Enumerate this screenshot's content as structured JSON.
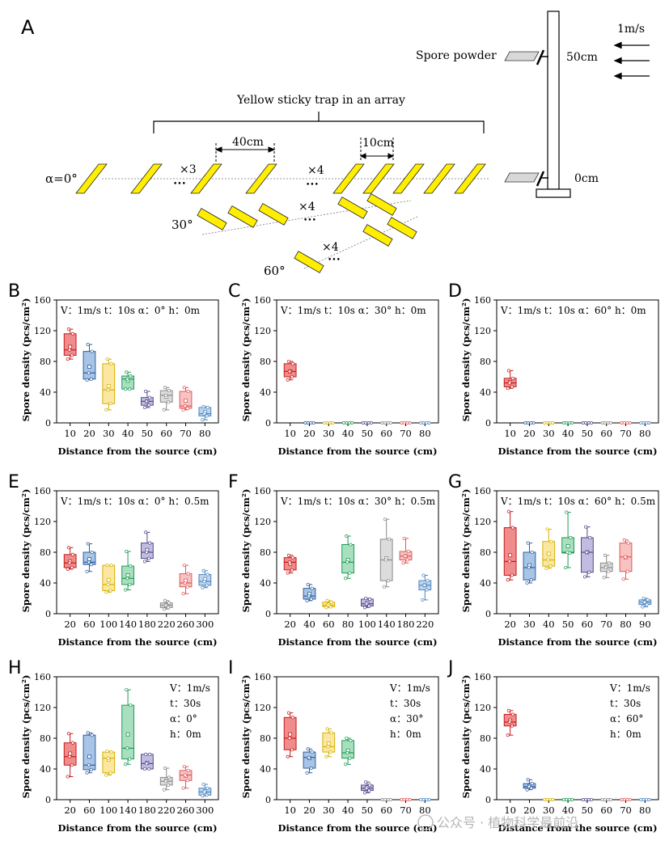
{
  "panel_a": {
    "letter": "A",
    "speed_label": "1m/s",
    "height_top_label": "50cm",
    "height_bottom_label": "0cm",
    "spore_label": "Spore powder",
    "array_label": "Yellow sticky trap in an array",
    "spacing_40": "40cm",
    "spacing_10": "10cm",
    "mult_3": "×3",
    "mult_4": "×4",
    "dots": "•••",
    "angle_0": "α=0°",
    "angle_30": "30°",
    "angle_60": "60°",
    "colors": {
      "trap": "#ffee00",
      "outline": "#000000"
    }
  },
  "watermark": "公众号 · 植物科学最前沿",
  "chart_data": [
    {
      "id": "B",
      "type": "box",
      "params": [
        "V：1m/s",
        "t：10s",
        "α：0°",
        "h：0m"
      ],
      "params_layout": "row",
      "ylabel": "Spore density (pcs/cm²)",
      "xlabel": "Distance from the source (cm)",
      "ylim": [
        0,
        160
      ],
      "yticks": [
        0,
        40,
        80,
        120,
        160
      ],
      "categories": [
        "10",
        "20",
        "30",
        "40",
        "50",
        "60",
        "70",
        "80"
      ],
      "boxes": [
        {
          "min": 83,
          "q1": 88,
          "median": 95,
          "mean": 99,
          "q3": 116,
          "max": 122
        },
        {
          "min": 56,
          "q1": 57,
          "median": 65,
          "mean": 73,
          "q3": 93,
          "max": 102
        },
        {
          "min": 17,
          "q1": 25,
          "median": 43,
          "mean": 48,
          "q3": 77,
          "max": 83
        },
        {
          "min": 44,
          "q1": 44,
          "median": 57,
          "mean": 55,
          "q3": 61,
          "max": 66
        },
        {
          "min": 20,
          "q1": 23,
          "median": 28,
          "mean": 28,
          "q3": 33,
          "max": 41
        },
        {
          "min": 17,
          "q1": 27,
          "median": 36,
          "mean": 34,
          "q3": 42,
          "max": 46
        },
        {
          "min": 17,
          "q1": 19,
          "median": 22,
          "mean": 29,
          "q3": 41,
          "max": 46
        },
        {
          "min": 4,
          "q1": 9,
          "median": 12,
          "mean": 14,
          "q3": 20,
          "max": 21
        }
      ]
    },
    {
      "id": "C",
      "type": "box",
      "params": [
        "V：1m/s",
        "t：10s",
        "α：30°",
        "h：0m"
      ],
      "params_layout": "row",
      "ylabel": "Spore density (pcs/cm²)",
      "xlabel": "Distance from the source (cm)",
      "ylim": [
        0,
        160
      ],
      "yticks": [
        0,
        40,
        80,
        120,
        160
      ],
      "categories": [
        "10",
        "20",
        "30",
        "40",
        "50",
        "60",
        "70",
        "80"
      ],
      "boxes": [
        {
          "min": 56,
          "q1": 60,
          "median": 67,
          "mean": 67,
          "q3": 77,
          "max": 80
        },
        {
          "min": 0,
          "q1": 0,
          "median": 0,
          "mean": 0,
          "q3": 0,
          "max": 0
        },
        {
          "min": 0,
          "q1": 0,
          "median": 0,
          "mean": 0,
          "q3": 0,
          "max": 0
        },
        {
          "min": 0,
          "q1": 0,
          "median": 0,
          "mean": 0,
          "q3": 0,
          "max": 0
        },
        {
          "min": 0,
          "q1": 0,
          "median": 0,
          "mean": 0,
          "q3": 0,
          "max": 0
        },
        {
          "min": 0,
          "q1": 0,
          "median": 0,
          "mean": 0,
          "q3": 0,
          "max": 0
        },
        {
          "min": 0,
          "q1": 0,
          "median": 0,
          "mean": 0,
          "q3": 0,
          "max": 0
        },
        {
          "min": 0,
          "q1": 0,
          "median": 0,
          "mean": 0,
          "q3": 0,
          "max": 0
        }
      ]
    },
    {
      "id": "D",
      "type": "box",
      "params": [
        "V：1m/s",
        "t：10s",
        "α：60°",
        "h：0m"
      ],
      "params_layout": "row",
      "ylabel": "Spore density (pcs/cm²)",
      "xlabel": "Distance from the source (cm)",
      "ylim": [
        0,
        160
      ],
      "yticks": [
        0,
        40,
        80,
        120,
        160
      ],
      "categories": [
        "10",
        "20",
        "30",
        "40",
        "50",
        "60",
        "70",
        "80"
      ],
      "boxes": [
        {
          "min": 45,
          "q1": 47,
          "median": 52,
          "mean": 53,
          "q3": 58,
          "max": 68
        },
        {
          "min": 0,
          "q1": 0,
          "median": 0,
          "mean": 0,
          "q3": 0,
          "max": 0
        },
        {
          "min": 0,
          "q1": 0,
          "median": 0,
          "mean": 0,
          "q3": 0,
          "max": 0
        },
        {
          "min": 0,
          "q1": 0,
          "median": 0,
          "mean": 0,
          "q3": 0,
          "max": 0
        },
        {
          "min": 0,
          "q1": 0,
          "median": 0,
          "mean": 0,
          "q3": 0,
          "max": 0
        },
        {
          "min": 0,
          "q1": 0,
          "median": 0,
          "mean": 0,
          "q3": 0,
          "max": 0
        },
        {
          "min": 0,
          "q1": 0,
          "median": 0,
          "mean": 0,
          "q3": 0,
          "max": 0
        },
        {
          "min": 0,
          "q1": 0,
          "median": 0,
          "mean": 0,
          "q3": 0,
          "max": 0
        }
      ]
    },
    {
      "id": "E",
      "type": "box",
      "params": [
        "V：1m/s",
        "t：10s",
        "α：0°",
        "h：0.5m"
      ],
      "params_layout": "row",
      "ylabel": "Spore density (pcs/cm²)",
      "xlabel": "Distance from the source (cm)",
      "ylim": [
        0,
        160
      ],
      "yticks": [
        0,
        40,
        80,
        120,
        160
      ],
      "categories": [
        "20",
        "60",
        "100",
        "140",
        "180",
        "220",
        "260",
        "300"
      ],
      "boxes": [
        {
          "min": 58,
          "q1": 60,
          "median": 66,
          "mean": 68,
          "q3": 77,
          "max": 86
        },
        {
          "min": 55,
          "q1": 64,
          "median": 67,
          "mean": 71,
          "q3": 80,
          "max": 91
        },
        {
          "min": 28,
          "q1": 30,
          "median": 38,
          "mean": 44,
          "q3": 63,
          "max": 63
        },
        {
          "min": 31,
          "q1": 38,
          "median": 46,
          "mean": 50,
          "q3": 62,
          "max": 81
        },
        {
          "min": 68,
          "q1": 72,
          "median": 80,
          "mean": 83,
          "q3": 92,
          "max": 106
        },
        {
          "min": 6,
          "q1": 8,
          "median": 11,
          "mean": 11,
          "q3": 14,
          "max": 17
        },
        {
          "min": 26,
          "q1": 35,
          "median": 40,
          "mean": 43,
          "q3": 52,
          "max": 63
        },
        {
          "min": 34,
          "q1": 37,
          "median": 42,
          "mean": 45,
          "q3": 51,
          "max": 56
        }
      ]
    },
    {
      "id": "F",
      "type": "box",
      "params": [
        "V：1m/s",
        "t：10s",
        "α：30°",
        "h：0.5m"
      ],
      "params_layout": "row",
      "ylabel": "Spore density (pcs/cm²)",
      "xlabel": "Distance from the source (cm)",
      "ylim": [
        0,
        160
      ],
      "yticks": [
        0,
        40,
        80,
        120,
        160
      ],
      "categories": [
        "20",
        "40",
        "60",
        "80",
        "100",
        "140",
        "180",
        "220"
      ],
      "boxes": [
        {
          "min": 53,
          "q1": 57,
          "median": 67,
          "mean": 65,
          "q3": 73,
          "max": 76
        },
        {
          "min": 17,
          "q1": 19,
          "median": 23,
          "mean": 26,
          "q3": 33,
          "max": 38
        },
        {
          "min": 8,
          "q1": 9,
          "median": 11,
          "mean": 12,
          "q3": 15,
          "max": 17
        },
        {
          "min": 46,
          "q1": 53,
          "median": 67,
          "mean": 70,
          "q3": 90,
          "max": 101
        },
        {
          "min": 8,
          "q1": 10,
          "median": 13,
          "mean": 14,
          "q3": 19,
          "max": 20
        },
        {
          "min": 35,
          "q1": 43,
          "median": 70,
          "mean": 72,
          "q3": 97,
          "max": 123
        },
        {
          "min": 66,
          "q1": 70,
          "median": 75,
          "mean": 75,
          "q3": 81,
          "max": 98
        },
        {
          "min": 18,
          "q1": 31,
          "median": 37,
          "mean": 37,
          "q3": 43,
          "max": 50
        }
      ]
    },
    {
      "id": "G",
      "type": "box",
      "params": [
        "V：1m/s",
        "t：10s",
        "α：60°",
        "h：0.5m"
      ],
      "params_layout": "row",
      "ylabel": "Spore density (pcs/cm²)",
      "xlabel": "Distance from the source (cm)",
      "ylim": [
        0,
        160
      ],
      "yticks": [
        0,
        40,
        80,
        120,
        160
      ],
      "categories": [
        "20",
        "30",
        "40",
        "50",
        "60",
        "70",
        "80",
        "90"
      ],
      "boxes": [
        {
          "min": 44,
          "q1": 50,
          "median": 68,
          "mean": 76,
          "q3": 112,
          "max": 133
        },
        {
          "min": 40,
          "q1": 44,
          "median": 60,
          "mean": 63,
          "q3": 80,
          "max": 92
        },
        {
          "min": 59,
          "q1": 62,
          "median": 70,
          "mean": 78,
          "q3": 94,
          "max": 110
        },
        {
          "min": 60,
          "q1": 79,
          "median": 80,
          "mean": 88,
          "q3": 99,
          "max": 132
        },
        {
          "min": 48,
          "q1": 54,
          "median": 80,
          "mean": 80,
          "q3": 99,
          "max": 113
        },
        {
          "min": 47,
          "q1": 55,
          "median": 60,
          "mean": 61,
          "q3": 66,
          "max": 76
        },
        {
          "min": 45,
          "q1": 55,
          "median": 74,
          "mean": 73,
          "q3": 92,
          "max": 96
        },
        {
          "min": 9,
          "q1": 12,
          "median": 15,
          "mean": 15,
          "q3": 18,
          "max": 20
        }
      ]
    },
    {
      "id": "H",
      "type": "box",
      "params": [
        "V：1m/s",
        "t：30s",
        "α：0°",
        "h：0m"
      ],
      "params_layout": "column",
      "ylabel": "Spore density (pcs/cm²)",
      "xlabel": "Distance from the source (cm)",
      "ylim": [
        0,
        160
      ],
      "yticks": [
        0,
        40,
        80,
        120,
        160
      ],
      "categories": [
        "20",
        "60",
        "100",
        "140",
        "180",
        "220",
        "260",
        "300"
      ],
      "boxes": [
        {
          "min": 30,
          "q1": 45,
          "median": 56,
          "mean": 60,
          "q3": 74,
          "max": 86
        },
        {
          "min": 35,
          "q1": 39,
          "median": 45,
          "mean": 56,
          "q3": 84,
          "max": 87
        },
        {
          "min": 32,
          "q1": 35,
          "median": 54,
          "mean": 52,
          "q3": 62,
          "max": 63
        },
        {
          "min": 46,
          "q1": 53,
          "median": 67,
          "mean": 85,
          "q3": 123,
          "max": 143
        },
        {
          "min": 40,
          "q1": 40,
          "median": 47,
          "mean": 48,
          "q3": 59,
          "max": 59
        },
        {
          "min": 13,
          "q1": 19,
          "median": 24,
          "mean": 25,
          "q3": 29,
          "max": 41
        },
        {
          "min": 15,
          "q1": 25,
          "median": 32,
          "mean": 31,
          "q3": 38,
          "max": 43
        },
        {
          "min": 5,
          "q1": 6,
          "median": 10,
          "mean": 11,
          "q3": 15,
          "max": 20
        }
      ]
    },
    {
      "id": "I",
      "type": "box",
      "params": [
        "V：1m/s",
        "t：30s",
        "α：30°",
        "h：0m"
      ],
      "params_layout": "column",
      "ylabel": "Spore density (pcs/cm²)",
      "xlabel": "Distance from the source (cm)",
      "ylim": [
        0,
        160
      ],
      "yticks": [
        0,
        40,
        80,
        120,
        160
      ],
      "categories": [
        "10",
        "20",
        "30",
        "40",
        "50",
        "60",
        "70",
        "80"
      ],
      "boxes": [
        {
          "min": 56,
          "q1": 65,
          "median": 80,
          "mean": 85,
          "q3": 107,
          "max": 113
        },
        {
          "min": 35,
          "q1": 41,
          "median": 55,
          "mean": 54,
          "q3": 62,
          "max": 66
        },
        {
          "min": 56,
          "q1": 62,
          "median": 69,
          "mean": 73,
          "q3": 87,
          "max": 92
        },
        {
          "min": 46,
          "q1": 54,
          "median": 61,
          "mean": 64,
          "q3": 77,
          "max": 80
        },
        {
          "min": 9,
          "q1": 12,
          "median": 15,
          "mean": 16,
          "q3": 19,
          "max": 23
        },
        {
          "min": 0,
          "q1": 0,
          "median": 0,
          "mean": 0,
          "q3": 0,
          "max": 0
        },
        {
          "min": 0,
          "q1": 0,
          "median": 0,
          "mean": 0,
          "q3": 0,
          "max": 0
        },
        {
          "min": 0,
          "q1": 0,
          "median": 0,
          "mean": 0,
          "q3": 0,
          "max": 0
        }
      ]
    },
    {
      "id": "J",
      "type": "box",
      "params": [
        "V：1m/s",
        "t：30s",
        "α：60°",
        "h：0m"
      ],
      "params_layout": "column",
      "ylabel": "Spore density (pcs/cm²)",
      "xlabel": "Distance from the source (cm)",
      "ylim": [
        0,
        160
      ],
      "yticks": [
        0,
        40,
        80,
        120,
        160
      ],
      "categories": [
        "10",
        "20",
        "30",
        "40",
        "50",
        "60",
        "70",
        "80"
      ],
      "boxes": [
        {
          "min": 84,
          "q1": 96,
          "median": 101,
          "mean": 103,
          "q3": 111,
          "max": 116
        },
        {
          "min": 13,
          "q1": 15,
          "median": 17,
          "mean": 18,
          "q3": 21,
          "max": 26
        },
        {
          "min": 0,
          "q1": 0,
          "median": 0,
          "mean": 0,
          "q3": 0,
          "max": 0
        },
        {
          "min": 0,
          "q1": 0,
          "median": 0,
          "mean": 0,
          "q3": 0,
          "max": 0
        },
        {
          "min": 0,
          "q1": 0,
          "median": 0,
          "mean": 0,
          "q3": 0,
          "max": 0
        },
        {
          "min": 0,
          "q1": 0,
          "median": 0,
          "mean": 0,
          "q3": 0,
          "max": 0
        },
        {
          "min": 0,
          "q1": 0,
          "median": 0,
          "mean": 0,
          "q3": 0,
          "max": 0
        },
        {
          "min": 0,
          "q1": 0,
          "median": 0,
          "mean": 0,
          "q3": 0,
          "max": 0
        }
      ]
    }
  ],
  "series_colors": [
    {
      "fill": "#f08c8c",
      "stroke": "#c41b1b"
    },
    {
      "fill": "#a8c4e6",
      "stroke": "#2f5f9c"
    },
    {
      "fill": "#fbe7a1",
      "stroke": "#d6b200"
    },
    {
      "fill": "#a8e0bf",
      "stroke": "#1e9a54"
    },
    {
      "fill": "#c2bce0",
      "stroke": "#4f4a8c"
    },
    {
      "fill": "#dcdcdc",
      "stroke": "#8a8a8a"
    },
    {
      "fill": "#f7c2c2",
      "stroke": "#e05a5a"
    },
    {
      "fill": "#bcd6ee",
      "stroke": "#4f86c0"
    }
  ]
}
